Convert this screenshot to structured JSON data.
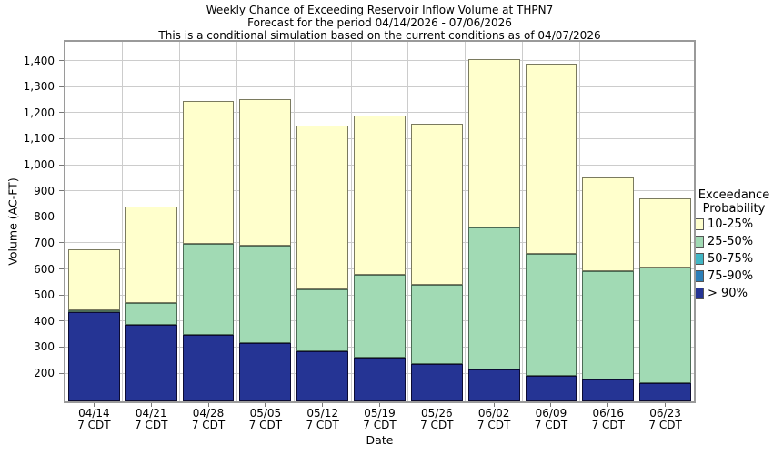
{
  "title": {
    "line1": "Weekly Chance of Exceeding Reservoir Inflow Volume at THPN7",
    "line2": "Forecast for the period 04/14/2026 - 07/06/2026",
    "line3": "This is a conditional simulation based on the current conditions as of 04/07/2026"
  },
  "axes": {
    "y_label": "Volume (AC-FT)",
    "x_label": "Date",
    "y_ticks": [
      200,
      300,
      400,
      500,
      600,
      700,
      800,
      900,
      1000,
      1100,
      1200,
      1300,
      1400
    ],
    "x_tick_sublabel": "7 CDT"
  },
  "legend": {
    "title_line1": "Exceedance",
    "title_line2": "Probability",
    "items": [
      {
        "label": "10-25%",
        "color": "#FFFFCC"
      },
      {
        "label": "25-50%",
        "color": "#A1DAB4"
      },
      {
        "label": "50-75%",
        "color": "#41B6C4"
      },
      {
        "label": "75-90%",
        "color": "#2C7FB8"
      },
      {
        "label": "> 90%",
        "color": "#253494"
      }
    ]
  },
  "chart_data": {
    "type": "bar",
    "stacked": true,
    "title": "Weekly Chance of Exceeding Reservoir Inflow Volume at THPN7",
    "xlabel": "Date",
    "ylabel": "Volume (AC-FT)",
    "ylim": [
      92,
      1472
    ],
    "baseline": 92,
    "grid": true,
    "legend_position": "right",
    "categories": [
      "04/14",
      "04/21",
      "04/28",
      "05/05",
      "05/12",
      "05/19",
      "05/26",
      "06/02",
      "06/09",
      "06/16",
      "06/23"
    ],
    "category_sublabel": "7 CDT",
    "series": [
      {
        "name": "> 90%",
        "color": "#253494",
        "edge": "#0b0b33",
        "segment_top_acft": [
          433,
          385,
          348,
          315,
          284,
          260,
          234,
          214,
          190,
          177,
          163
        ]
      },
      {
        "name": "25-50%",
        "color": "#A1DAB4",
        "edge": "#4c6b55",
        "segment_top_acft": [
          441,
          471,
          698,
          690,
          523,
          579,
          539,
          760,
          659,
          591,
          606
        ]
      },
      {
        "name": "10-25%",
        "color": "#FFFFCC",
        "edge": "#7a7a5f",
        "segment_top_acft": [
          675,
          838,
          1245,
          1252,
          1150,
          1188,
          1159,
          1406,
          1388,
          951,
          871
        ]
      }
    ]
  },
  "colors": {
    "gridline": "#cccccc",
    "plot_border": "#9a9a9a",
    "background": "#ffffff"
  }
}
